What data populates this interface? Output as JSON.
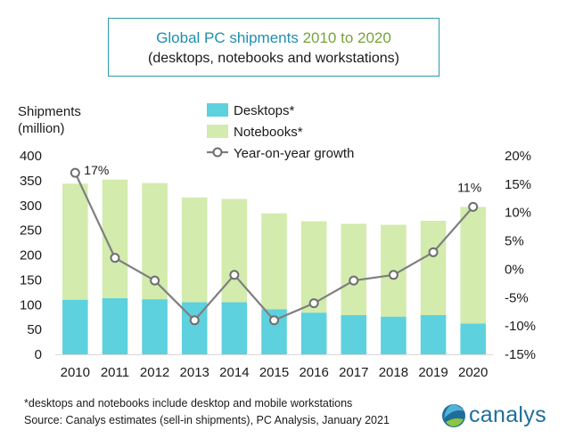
{
  "title": {
    "part1": "Global PC shipments ",
    "part2": "2010 to 2020",
    "subtitle": "(desktops, notebooks and workstations)"
  },
  "chart_data": {
    "type": "bar",
    "stacked": true,
    "categories": [
      "2010",
      "2011",
      "2012",
      "2013",
      "2014",
      "2015",
      "2016",
      "2017",
      "2018",
      "2019",
      "2020"
    ],
    "series": [
      {
        "name": "Desktops*",
        "type": "bar",
        "color": "#5dd1de",
        "values": [
          110,
          113,
          111,
          105,
          105,
          91,
          84,
          79,
          76,
          79,
          62
        ]
      },
      {
        "name": "Notebooks*",
        "type": "bar",
        "color": "#d3ebac",
        "values": [
          234,
          239,
          234,
          211,
          208,
          193,
          184,
          184,
          185,
          190,
          235
        ]
      },
      {
        "name": "Year-on-year growth",
        "type": "line",
        "axis": "right",
        "color": "#7f7f7f",
        "values": [
          17,
          2,
          -2,
          -9,
          -1,
          -9,
          -6,
          -2,
          -1,
          3,
          11
        ]
      }
    ],
    "ylabel": "Shipments\n(million)",
    "ylabel_line1": "Shipments",
    "ylabel_line2": "(million)",
    "ylim": [
      0,
      400
    ],
    "yticks": [
      "0",
      "50",
      "100",
      "150",
      "200",
      "250",
      "300",
      "350",
      "400"
    ],
    "y2lim": [
      -15,
      20
    ],
    "y2ticks": [
      "-15%",
      "-10%",
      "-5%",
      "0%",
      "5%",
      "10%",
      "15%",
      "20%"
    ],
    "annotations": [
      {
        "category": "2010",
        "text": "17%"
      },
      {
        "category": "2020",
        "text": "11%"
      }
    ],
    "legend": "top"
  },
  "footnote": "*desktops and notebooks include desktop and mobile workstations",
  "source": "Source: Canalys estimates (sell-in shipments), PC Analysis, January 2021",
  "logo": {
    "text": "canalys",
    "colors": [
      "#1f6e9a",
      "#4fb3d9",
      "#8cc63f"
    ]
  }
}
